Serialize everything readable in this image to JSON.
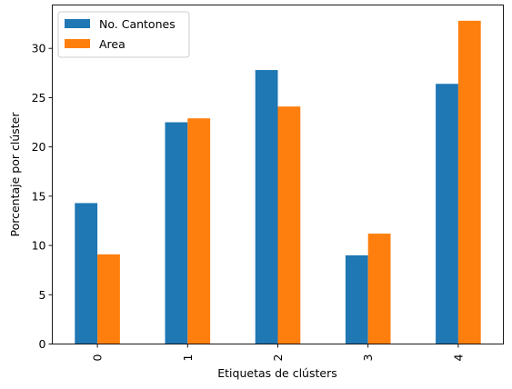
{
  "chart_data": {
    "type": "bar",
    "xlabel": "Etiquetas de clústers",
    "ylabel": "Porcentaje por clúster",
    "categories": [
      "0",
      "1",
      "2",
      "3",
      "4"
    ],
    "series": [
      {
        "name": "No. Cantones",
        "color": "#1f77b4",
        "values": [
          14.3,
          22.5,
          27.8,
          9.0,
          26.4
        ]
      },
      {
        "name": "Area",
        "color": "#ff7f0e",
        "values": [
          9.1,
          22.9,
          24.1,
          11.2,
          32.8
        ]
      }
    ],
    "ylim": [
      0,
      34.4
    ],
    "yticks": [
      "0",
      "5",
      "10",
      "15",
      "20",
      "25",
      "30"
    ],
    "legend_position": "top-left",
    "grid": false
  }
}
